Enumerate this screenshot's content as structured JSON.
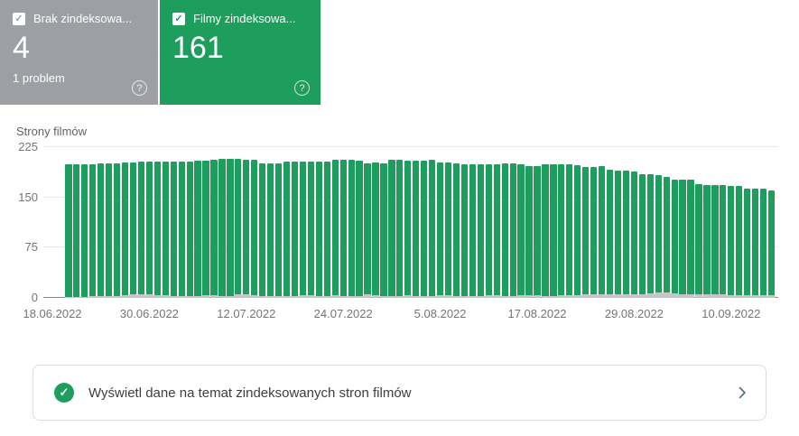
{
  "colors": {
    "green": "#1e9e5c",
    "gray_card": "#9c9fa4",
    "gray_bar": "#c6c6c6",
    "chevron": "#546e7a"
  },
  "icons": {
    "check_glyph": "✓",
    "question_glyph": "?"
  },
  "cards": [
    {
      "label": "Brak zindeksowa...",
      "value": "4",
      "sub": "1 problem",
      "checked": true
    },
    {
      "label": "Filmy zindeksowa...",
      "value": "161",
      "sub": "",
      "checked": true
    }
  ],
  "chart_data": {
    "type": "bar",
    "title": "Strony filmów",
    "ylabel": "",
    "xlabel": "",
    "ylim": [
      0,
      225
    ],
    "y_ticks": [
      0,
      75,
      150,
      225
    ],
    "grid": true,
    "x_start_label": "18.06.2022",
    "x_tick_labels": [
      "18.06.2022",
      "30.06.2022",
      "12.07.2022",
      "24.07.2022",
      "5.08.2022",
      "17.08.2022",
      "29.08.2022",
      "10.09.2022"
    ],
    "x_tick_day_offsets": [
      0,
      12,
      24,
      36,
      48,
      60,
      72,
      84
    ],
    "days_total": 90,
    "series": [
      {
        "name": "Filmy zindeksowane",
        "color_key": "green",
        "first_day_offset": 2,
        "first_date": "20.06.2022",
        "last_date": "15.09.2022",
        "values": [
          199,
          199,
          200,
          200,
          201,
          201,
          201,
          202,
          202,
          203,
          203,
          203,
          203,
          204,
          204,
          204,
          205,
          205,
          206,
          207,
          207,
          207,
          206,
          206,
          201,
          201,
          201,
          203,
          203,
          203,
          204,
          204,
          204,
          206,
          206,
          206,
          205,
          201,
          202,
          201,
          206,
          206,
          205,
          205,
          205,
          206,
          202,
          202,
          201,
          200,
          200,
          200,
          200,
          200,
          201,
          201,
          200,
          197,
          197,
          199,
          199,
          199,
          200,
          198,
          195,
          195,
          197,
          191,
          190,
          190,
          189,
          184,
          184,
          183,
          180,
          177,
          176,
          176,
          170,
          169,
          168,
          168,
          167,
          167,
          163,
          163,
          163,
          161
        ]
      },
      {
        "name": "Brak zindeksowanych",
        "color_key": "gray_bar",
        "first_day_offset": 2,
        "first_date": "20.06.2022",
        "last_date": "15.09.2022",
        "values": [
          2,
          2,
          2,
          3,
          3,
          3,
          3,
          4,
          5,
          6,
          5,
          4,
          4,
          3,
          3,
          3,
          3,
          4,
          4,
          3,
          3,
          5,
          5,
          4,
          3,
          3,
          3,
          3,
          3,
          4,
          4,
          3,
          3,
          4,
          3,
          3,
          3,
          5,
          4,
          3,
          3,
          3,
          4,
          3,
          3,
          3,
          4,
          4,
          3,
          3,
          3,
          3,
          4,
          4,
          3,
          3,
          4,
          4,
          4,
          3,
          3,
          4,
          4,
          4,
          5,
          5,
          5,
          5,
          5,
          6,
          6,
          6,
          7,
          8,
          8,
          7,
          6,
          6,
          5,
          5,
          5,
          5,
          4,
          4,
          4,
          4,
          4,
          4
        ]
      }
    ]
  },
  "footer": {
    "text": "Wyświetl dane na temat zindeksowanych stron filmów"
  }
}
